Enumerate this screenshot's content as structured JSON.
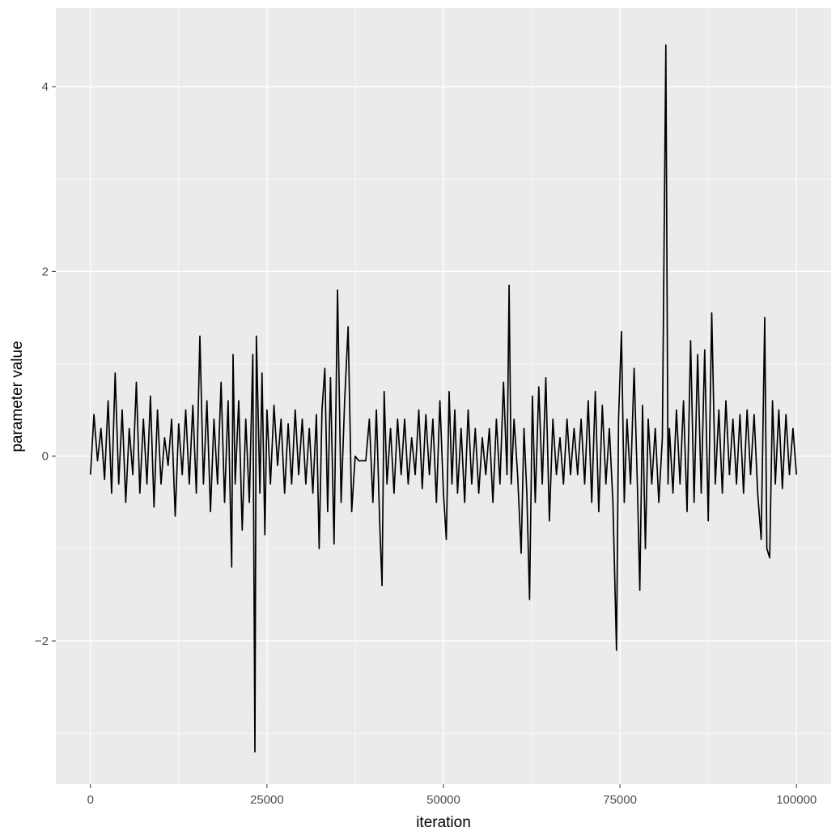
{
  "chart_data": {
    "type": "line",
    "title": "",
    "xlabel": "iteration",
    "ylabel": "parameter value",
    "xlim": [
      -4900,
      104900
    ],
    "ylim": [
      -3.55,
      4.85
    ],
    "x_ticks": [
      0,
      25000,
      50000,
      75000,
      100000
    ],
    "x_tick_labels": [
      "0",
      "25000",
      "50000",
      "75000",
      "100000"
    ],
    "y_ticks": [
      -2,
      0,
      2,
      4
    ],
    "y_tick_labels": [
      "−2",
      "0",
      "2",
      "4"
    ],
    "grid": true,
    "legend": "none",
    "series": [
      {
        "line_color": "#000000",
        "points": [
          [
            0,
            -0.2
          ],
          [
            500,
            0.45
          ],
          [
            1000,
            -0.05
          ],
          [
            1500,
            0.3
          ],
          [
            2000,
            -0.25
          ],
          [
            2500,
            0.6
          ],
          [
            3000,
            -0.4
          ],
          [
            3500,
            0.9
          ],
          [
            4000,
            -0.3
          ],
          [
            4500,
            0.5
          ],
          [
            5000,
            -0.5
          ],
          [
            5500,
            0.3
          ],
          [
            6000,
            -0.2
          ],
          [
            6500,
            0.8
          ],
          [
            7000,
            -0.4
          ],
          [
            7500,
            0.4
          ],
          [
            8000,
            -0.3
          ],
          [
            8500,
            0.65
          ],
          [
            9000,
            -0.55
          ],
          [
            9500,
            0.5
          ],
          [
            10000,
            -0.3
          ],
          [
            10500,
            0.2
          ],
          [
            11000,
            -0.1
          ],
          [
            11500,
            0.4
          ],
          [
            12000,
            -0.65
          ],
          [
            12500,
            0.35
          ],
          [
            13000,
            -0.2
          ],
          [
            13500,
            0.5
          ],
          [
            14000,
            -0.3
          ],
          [
            14500,
            0.55
          ],
          [
            15000,
            -0.4
          ],
          [
            15500,
            1.3
          ],
          [
            16000,
            -0.3
          ],
          [
            16500,
            0.6
          ],
          [
            17000,
            -0.6
          ],
          [
            17500,
            0.4
          ],
          [
            18000,
            -0.3
          ],
          [
            18500,
            0.8
          ],
          [
            19000,
            -0.5
          ],
          [
            19500,
            0.6
          ],
          [
            20000,
            -1.2
          ],
          [
            20200,
            1.1
          ],
          [
            20500,
            -0.3
          ],
          [
            21000,
            0.6
          ],
          [
            21500,
            -0.8
          ],
          [
            22000,
            0.4
          ],
          [
            22500,
            -0.5
          ],
          [
            23000,
            1.1
          ],
          [
            23300,
            -3.2
          ],
          [
            23500,
            1.3
          ],
          [
            24000,
            -0.4
          ],
          [
            24300,
            0.9
          ],
          [
            24700,
            -0.85
          ],
          [
            25000,
            0.5
          ],
          [
            25500,
            -0.3
          ],
          [
            26000,
            0.55
          ],
          [
            26500,
            -0.1
          ],
          [
            27000,
            0.4
          ],
          [
            27500,
            -0.4
          ],
          [
            28000,
            0.35
          ],
          [
            28500,
            -0.3
          ],
          [
            29000,
            0.5
          ],
          [
            29500,
            -0.2
          ],
          [
            30000,
            0.4
          ],
          [
            30500,
            -0.3
          ],
          [
            31000,
            0.3
          ],
          [
            31500,
            -0.4
          ],
          [
            32000,
            0.45
          ],
          [
            32400,
            -1.0
          ],
          [
            32800,
            0.5
          ],
          [
            33200,
            0.95
          ],
          [
            33600,
            -0.6
          ],
          [
            34000,
            0.85
          ],
          [
            34500,
            -0.95
          ],
          [
            35000,
            1.8
          ],
          [
            35500,
            -0.5
          ],
          [
            36000,
            0.6
          ],
          [
            36500,
            1.4
          ],
          [
            37000,
            -0.6
          ],
          [
            37500,
            0.0
          ],
          [
            38000,
            -0.05
          ],
          [
            39000,
            -0.05
          ],
          [
            39500,
            0.4
          ],
          [
            40000,
            -0.5
          ],
          [
            40500,
            0.5
          ],
          [
            41000,
            -0.8
          ],
          [
            41300,
            -1.4
          ],
          [
            41600,
            0.7
          ],
          [
            42000,
            -0.3
          ],
          [
            42500,
            0.3
          ],
          [
            43000,
            -0.4
          ],
          [
            43500,
            0.4
          ],
          [
            44000,
            -0.2
          ],
          [
            44500,
            0.4
          ],
          [
            45000,
            -0.3
          ],
          [
            45500,
            0.2
          ],
          [
            46000,
            -0.2
          ],
          [
            46500,
            0.5
          ],
          [
            47000,
            -0.35
          ],
          [
            47500,
            0.45
          ],
          [
            48000,
            -0.2
          ],
          [
            48500,
            0.4
          ],
          [
            49000,
            -0.5
          ],
          [
            49500,
            0.6
          ],
          [
            50000,
            -0.4
          ],
          [
            50400,
            -0.9
          ],
          [
            50800,
            0.7
          ],
          [
            51200,
            -0.3
          ],
          [
            51600,
            0.5
          ],
          [
            52000,
            -0.4
          ],
          [
            52500,
            0.3
          ],
          [
            53000,
            -0.5
          ],
          [
            53500,
            0.5
          ],
          [
            54000,
            -0.3
          ],
          [
            54500,
            0.3
          ],
          [
            55000,
            -0.4
          ],
          [
            55500,
            0.2
          ],
          [
            56000,
            -0.2
          ],
          [
            56500,
            0.3
          ],
          [
            57000,
            -0.5
          ],
          [
            57500,
            0.4
          ],
          [
            58000,
            -0.3
          ],
          [
            58500,
            0.8
          ],
          [
            59000,
            -0.2
          ],
          [
            59300,
            1.85
          ],
          [
            59600,
            -0.3
          ],
          [
            60000,
            0.4
          ],
          [
            60500,
            -0.2
          ],
          [
            61000,
            -1.05
          ],
          [
            61400,
            0.3
          ],
          [
            61800,
            -0.4
          ],
          [
            62200,
            -1.55
          ],
          [
            62600,
            0.65
          ],
          [
            63000,
            -0.5
          ],
          [
            63500,
            0.75
          ],
          [
            64000,
            -0.3
          ],
          [
            64500,
            0.85
          ],
          [
            65000,
            -0.7
          ],
          [
            65500,
            0.4
          ],
          [
            66000,
            -0.2
          ],
          [
            66500,
            0.2
          ],
          [
            67000,
            -0.3
          ],
          [
            67500,
            0.4
          ],
          [
            68000,
            -0.2
          ],
          [
            68500,
            0.3
          ],
          [
            69000,
            -0.2
          ],
          [
            69500,
            0.4
          ],
          [
            70000,
            -0.3
          ],
          [
            70500,
            0.6
          ],
          [
            71000,
            -0.5
          ],
          [
            71500,
            0.7
          ],
          [
            72000,
            -0.6
          ],
          [
            72500,
            0.55
          ],
          [
            73000,
            -0.3
          ],
          [
            73500,
            0.3
          ],
          [
            74000,
            -0.5
          ],
          [
            74500,
            -2.1
          ],
          [
            74800,
            0.4
          ],
          [
            75200,
            1.35
          ],
          [
            75600,
            -0.5
          ],
          [
            76000,
            0.4
          ],
          [
            76500,
            -0.3
          ],
          [
            77000,
            0.95
          ],
          [
            77500,
            -0.4
          ],
          [
            77800,
            -1.45
          ],
          [
            78200,
            0.55
          ],
          [
            78600,
            -1.0
          ],
          [
            79000,
            0.4
          ],
          [
            79500,
            -0.3
          ],
          [
            80000,
            0.3
          ],
          [
            80500,
            -0.5
          ],
          [
            81000,
            0.2
          ],
          [
            81500,
            4.45
          ],
          [
            81800,
            -0.3
          ],
          [
            82000,
            0.3
          ],
          [
            82500,
            -0.4
          ],
          [
            83000,
            0.5
          ],
          [
            83500,
            -0.3
          ],
          [
            84000,
            0.6
          ],
          [
            84500,
            -0.6
          ],
          [
            85000,
            1.25
          ],
          [
            85500,
            -0.5
          ],
          [
            86000,
            1.1
          ],
          [
            86500,
            -0.4
          ],
          [
            87000,
            1.15
          ],
          [
            87500,
            -0.7
          ],
          [
            88000,
            1.55
          ],
          [
            88500,
            -0.3
          ],
          [
            89000,
            0.5
          ],
          [
            89500,
            -0.4
          ],
          [
            90000,
            0.6
          ],
          [
            90500,
            -0.2
          ],
          [
            91000,
            0.4
          ],
          [
            91500,
            -0.3
          ],
          [
            92000,
            0.45
          ],
          [
            92500,
            -0.4
          ],
          [
            93000,
            0.5
          ],
          [
            93500,
            -0.2
          ],
          [
            94000,
            0.45
          ],
          [
            94500,
            -0.4
          ],
          [
            95000,
            -0.9
          ],
          [
            95500,
            1.5
          ],
          [
            95800,
            -1.0
          ],
          [
            96200,
            -1.1
          ],
          [
            96600,
            0.6
          ],
          [
            97000,
            -0.3
          ],
          [
            97500,
            0.5
          ],
          [
            98000,
            -0.35
          ],
          [
            98500,
            0.45
          ],
          [
            99000,
            -0.2
          ],
          [
            99500,
            0.3
          ],
          [
            100000,
            -0.2
          ]
        ]
      }
    ]
  }
}
